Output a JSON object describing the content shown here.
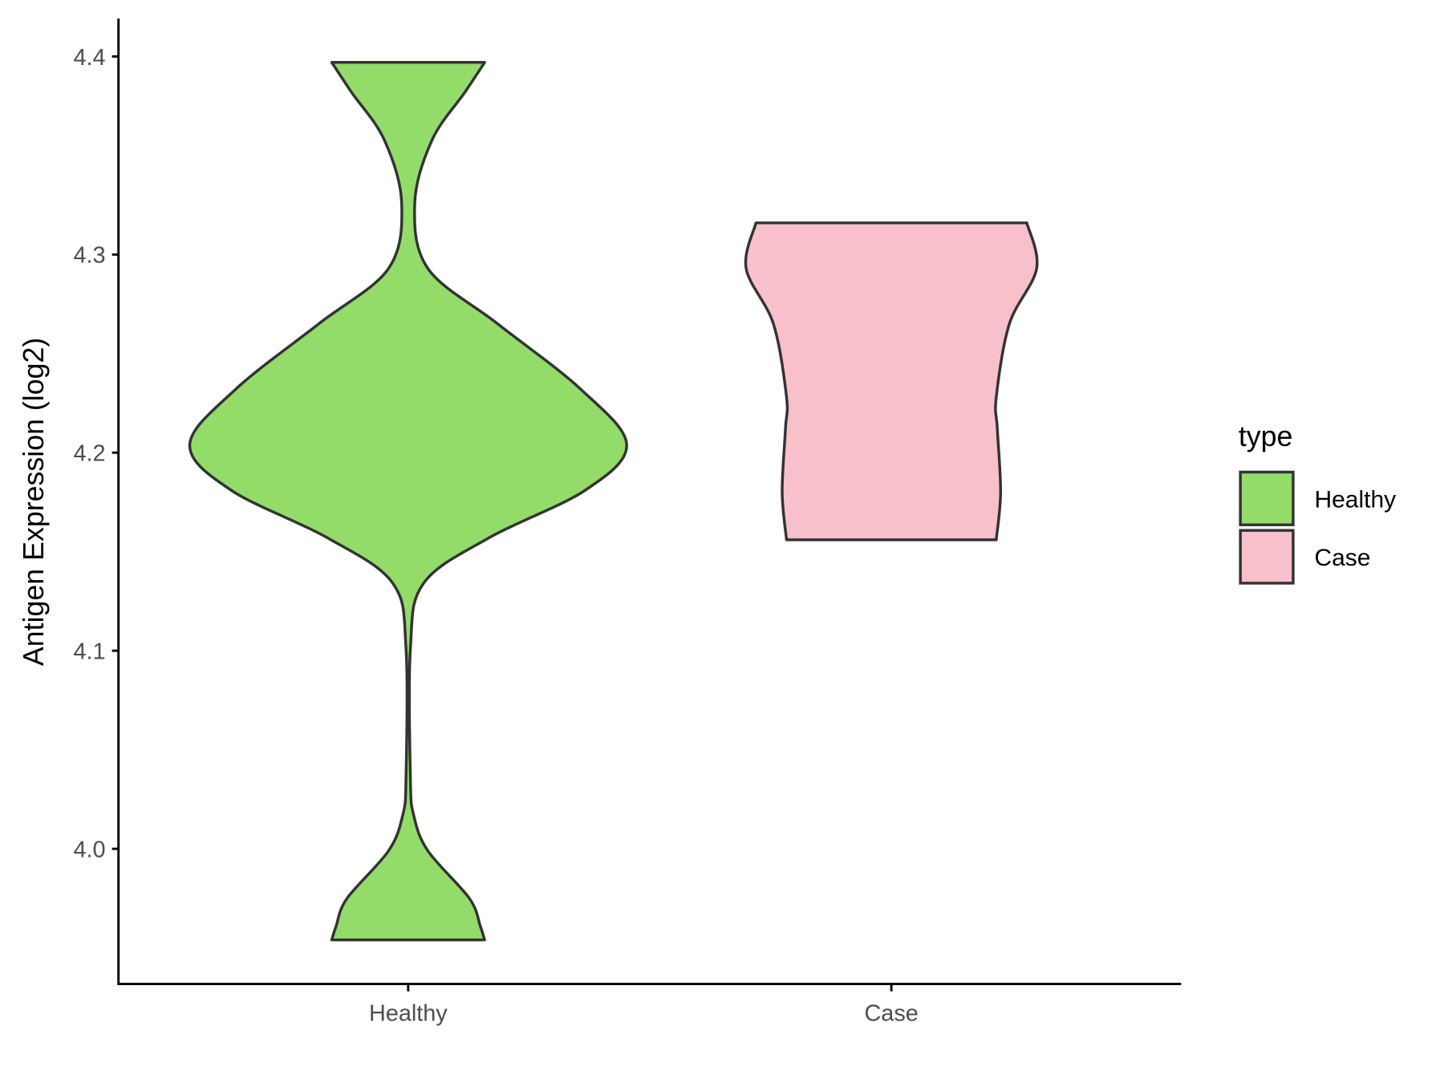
{
  "chart_data": {
    "type": "violin",
    "title": "",
    "xlabel": "",
    "ylabel": "Antigen Expression (log2)",
    "ylim": [
      3.93,
      4.419
    ],
    "yticks": [
      "4.0",
      "4.1",
      "4.2",
      "4.3",
      "4.4"
    ],
    "categories": [
      "Healthy",
      "Case"
    ],
    "grid": false,
    "legend": {
      "title": "type",
      "position": "right",
      "entries": [
        "Healthy",
        "Case"
      ]
    },
    "series": [
      {
        "name": "Healthy",
        "color": "#93dc6a",
        "min": 3.954,
        "max": 4.397,
        "density_profile": [
          [
            4.397,
            0.35
          ],
          [
            4.382,
            0.26
          ],
          [
            4.358,
            0.11
          ],
          [
            4.326,
            0.03
          ],
          [
            4.293,
            0.09
          ],
          [
            4.265,
            0.41
          ],
          [
            4.232,
            0.79
          ],
          [
            4.204,
            1.0
          ],
          [
            4.181,
            0.81
          ],
          [
            4.157,
            0.37
          ],
          [
            4.134,
            0.07
          ],
          [
            4.101,
            0.01
          ],
          [
            4.036,
            0.01
          ],
          [
            4.017,
            0.025
          ],
          [
            3.999,
            0.09
          ],
          [
            3.975,
            0.28
          ],
          [
            3.961,
            0.33
          ],
          [
            3.954,
            0.35
          ]
        ]
      },
      {
        "name": "Case",
        "color": "#f8c0cb",
        "min": 4.156,
        "max": 4.316,
        "density_profile": [
          [
            4.316,
            0.62
          ],
          [
            4.293,
            0.665
          ],
          [
            4.265,
            0.54
          ],
          [
            4.228,
            0.48
          ],
          [
            4.212,
            0.485
          ],
          [
            4.18,
            0.5
          ],
          [
            4.156,
            0.48
          ]
        ]
      }
    ]
  }
}
